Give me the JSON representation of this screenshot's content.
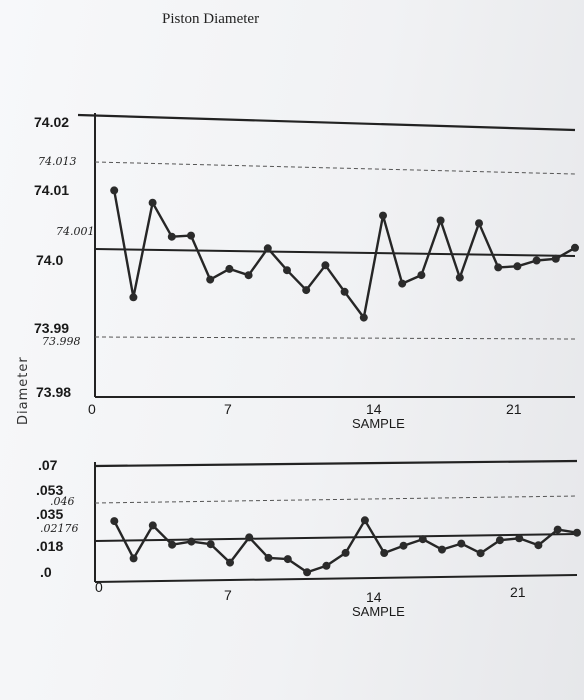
{
  "chart_data": [
    {
      "type": "line",
      "title": "Piston Diameter",
      "ylabel": "Diameter",
      "xlabel": "SAMPLE",
      "yticks": [
        "74.02",
        "74.01",
        "74.0",
        "73.99",
        "73.98"
      ],
      "xticks": [
        "0",
        "7",
        "14",
        "21"
      ],
      "annotations": [
        "74.013",
        "74.001",
        "73.998"
      ],
      "ylim": [
        73.98,
        74.02
      ],
      "xlim": [
        0,
        25
      ],
      "control_limits": {
        "upper": 74.02,
        "ucl": 74.013,
        "center": 74.001,
        "lcl": 73.988
      },
      "x": [
        1,
        2,
        3,
        4,
        5,
        6,
        7,
        8,
        9,
        10,
        11,
        12,
        13,
        14,
        15,
        16,
        17,
        18,
        19,
        20,
        21,
        22,
        23,
        24,
        25
      ],
      "series": [
        {
          "values": [
            74.01,
            73.9945,
            74.0083,
            74.0034,
            74.0036,
            73.9972,
            73.9988,
            73.9979,
            74.0019,
            73.9987,
            73.9958,
            73.9995,
            73.9956,
            73.9918,
            74.007,
            73.9969,
            73.9982,
            74.0064,
            73.9979,
            74.0061,
            73.9995,
            73.9997,
            74.0006,
            74.0009,
            74.0026
          ]
        }
      ],
      "grid": false
    },
    {
      "type": "line",
      "xlabel": "SAMPLE",
      "yticks": [
        ".07",
        ".053",
        ".035",
        ".018",
        ".0"
      ],
      "xticks": [
        "0",
        "7",
        "14",
        "21"
      ],
      "annotations": [
        ".046",
        ".02176"
      ],
      "ylim": [
        0,
        0.07
      ],
      "xlim": [
        0,
        25
      ],
      "control_limits": {
        "upper": 0.07,
        "ucl": 0.046,
        "center": 0.02176
      },
      "x": [
        1,
        2,
        3,
        4,
        5,
        6,
        7,
        8,
        9,
        10,
        11,
        12,
        13,
        14,
        15,
        16,
        17,
        18,
        19,
        20,
        21,
        22,
        23,
        24,
        25
      ],
      "series": [
        {
          "values": [
            0.0366,
            0.0139,
            0.0337,
            0.0219,
            0.0236,
            0.0219,
            0.0106,
            0.0257,
            0.0131,
            0.0122,
            0.004,
            0.0078,
            0.0155,
            0.0352,
            0.0151,
            0.0194,
            0.0232,
            0.0167,
            0.0202,
            0.0142,
            0.022,
            0.023,
            0.0186,
            0.028,
            0.026
          ]
        }
      ],
      "grid": false
    }
  ]
}
